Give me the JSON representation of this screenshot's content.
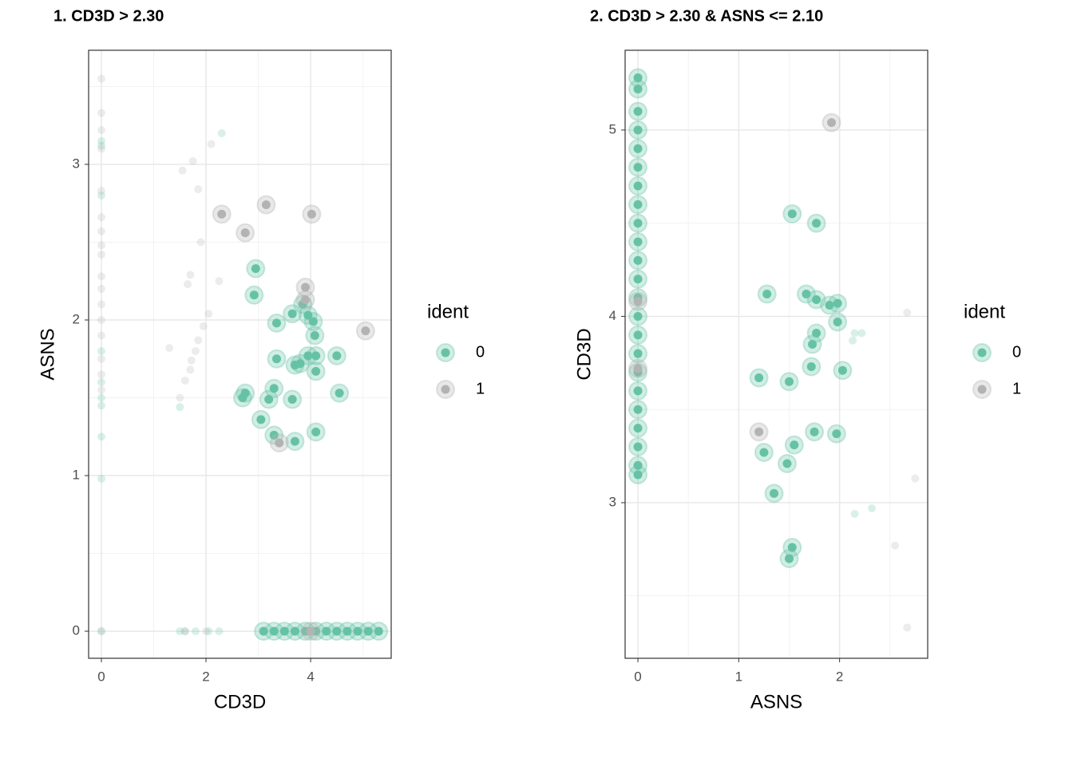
{
  "chart_data": [
    {
      "type": "scatter",
      "title": "1. CD3D > 2.30",
      "x_label": "CD3D",
      "y_label": "ASNS",
      "legend_title": "ident",
      "xlim": [
        -0.244,
        5.54
      ],
      "ylim": [
        -0.174,
        3.733
      ],
      "xticks": [
        0,
        2,
        4
      ],
      "yticks": [
        0,
        1,
        2,
        3
      ],
      "grid": true,
      "legend": "right",
      "series": [
        {
          "name": "0",
          "color": "#66c2a5",
          "x": [
            2.95,
            2.92,
            3.35,
            3.65,
            3.85,
            3.95,
            4.05,
            4.08,
            3.35,
            3.7,
            3.8,
            3.95,
            4.1,
            4.1,
            4.5,
            4.55,
            2.7,
            2.75,
            3.3,
            3.2,
            3.65,
            3.05,
            3.3,
            3.7,
            4.1,
            3.1,
            3.3,
            3.5,
            3.7,
            3.9,
            4.1,
            4.3,
            4.5,
            4.7,
            4.9,
            5.1,
            5.3,
            0,
            0,
            0,
            0,
            0,
            0,
            0,
            0,
            0,
            0,
            1.5,
            2.3,
            1.5,
            1.6,
            1.8,
            2.05,
            2.25
          ],
          "values": [
            2.33,
            2.16,
            1.98,
            2.04,
            2.1,
            2.03,
            1.99,
            1.9,
            1.75,
            1.71,
            1.72,
            1.77,
            1.77,
            1.67,
            1.77,
            1.53,
            1.5,
            1.53,
            1.56,
            1.49,
            1.49,
            1.36,
            1.26,
            1.22,
            1.28,
            0,
            0,
            0,
            0,
            0,
            0,
            0,
            0,
            0,
            0,
            0,
            0,
            0.98,
            1.25,
            1.45,
            1.5,
            1.6,
            1.8,
            3.12,
            3.15,
            2.8,
            0,
            1.44,
            3.2,
            0,
            0,
            0,
            0,
            0
          ],
          "sizes": [
            2,
            2,
            2,
            2,
            2,
            2,
            2,
            2,
            2,
            2,
            2,
            2,
            2,
            2,
            2,
            2,
            2,
            2,
            2,
            2,
            2,
            2,
            2,
            2,
            2,
            2,
            2,
            2,
            2,
            2,
            2,
            2,
            2,
            2,
            2,
            2,
            2,
            1,
            1,
            1,
            1,
            1,
            1,
            1,
            1,
            1,
            1,
            1,
            1,
            1,
            1,
            1,
            1,
            1
          ]
        },
        {
          "name": "1",
          "color": "#b3b3b3",
          "x": [
            2.3,
            3.15,
            4.02,
            2.75,
            3.9,
            3.9,
            5.05,
            3.4,
            4.0,
            0,
            0,
            0,
            0,
            0,
            0,
            0,
            0,
            0,
            0,
            0,
            0,
            0,
            0,
            0,
            0,
            0,
            0,
            1.55,
            1.75,
            2.1,
            1.85,
            1.9,
            1.7,
            1.65,
            2.25,
            2.05,
            1.95,
            1.3,
            1.85,
            1.8,
            1.72,
            1.7,
            1.6,
            1.5,
            1.6,
            2.0
          ],
          "values": [
            2.68,
            2.74,
            2.68,
            2.56,
            2.21,
            2.13,
            1.93,
            1.21,
            0,
            3.55,
            3.33,
            3.22,
            3.1,
            2.83,
            2.66,
            2.57,
            2.48,
            2.42,
            2.28,
            2.2,
            2.1,
            2.0,
            1.9,
            1.75,
            1.65,
            1.55,
            0,
            2.96,
            3.02,
            3.13,
            2.84,
            2.5,
            2.29,
            2.23,
            2.25,
            2.04,
            1.96,
            1.82,
            1.87,
            1.8,
            1.74,
            1.68,
            1.61,
            1.5,
            0,
            0
          ],
          "sizes": [
            2,
            2,
            2,
            2,
            2,
            2,
            2,
            2,
            2,
            1,
            1,
            1,
            1,
            1,
            1,
            1,
            1,
            1,
            1,
            1,
            1,
            1,
            1,
            1,
            1,
            1,
            1,
            1,
            1,
            1,
            1,
            1,
            1,
            1,
            1,
            1,
            1,
            1,
            1,
            1,
            1,
            1,
            1,
            1,
            1,
            1
          ]
        }
      ]
    },
    {
      "type": "scatter",
      "title": "2. CD3D > 2.30 & ASNS <= 2.10",
      "x_label": "ASNS",
      "y_label": "CD3D",
      "legend_title": "ident",
      "xlim": [
        -0.127,
        2.874
      ],
      "ylim": [
        2.165,
        5.428
      ],
      "xticks": [
        0,
        1,
        2
      ],
      "yticks": [
        3,
        4,
        5
      ],
      "grid": true,
      "legend": "right",
      "series": [
        {
          "name": "0",
          "color": "#66c2a5",
          "x": [
            0,
            0,
            0,
            0,
            0,
            0,
            0,
            0,
            0,
            0,
            0,
            0,
            0,
            0,
            0,
            0,
            0,
            0,
            0,
            0,
            0,
            0,
            0,
            1.53,
            1.77,
            1.28,
            1.67,
            1.77,
            1.9,
            1.98,
            1.98,
            1.77,
            1.73,
            1.2,
            1.5,
            1.72,
            2.03,
            1.75,
            1.97,
            1.55,
            1.25,
            1.48,
            1.35,
            1.53,
            1.5,
            2.13,
            2.15,
            2.22,
            2.15,
            2.32
          ],
          "values": [
            5.28,
            5.22,
            5.1,
            5.0,
            4.9,
            4.8,
            4.7,
            4.6,
            4.5,
            4.4,
            4.3,
            4.2,
            4.1,
            4.0,
            3.9,
            3.8,
            3.7,
            3.6,
            3.5,
            3.4,
            3.3,
            3.2,
            3.15,
            4.55,
            4.5,
            4.12,
            4.12,
            4.09,
            4.06,
            4.07,
            3.97,
            3.91,
            3.85,
            3.67,
            3.65,
            3.73,
            3.71,
            3.38,
            3.37,
            3.31,
            3.27,
            3.21,
            3.05,
            2.76,
            2.7,
            3.87,
            3.91,
            3.91,
            2.94,
            2.97
          ],
          "sizes": [
            2,
            2,
            2,
            2,
            2,
            2,
            2,
            2,
            2,
            2,
            2,
            2,
            2,
            2,
            2,
            2,
            2,
            2,
            2,
            2,
            2,
            2,
            2,
            2,
            2,
            2,
            2,
            2,
            2,
            2,
            2,
            2,
            2,
            2,
            2,
            2,
            2,
            2,
            2,
            2,
            2,
            2,
            2,
            2,
            2,
            1,
            1,
            1,
            1,
            1
          ]
        },
        {
          "name": "1",
          "color": "#b3b3b3",
          "x": [
            1.92,
            1.2,
            0,
            0,
            2.67,
            2.75,
            2.55,
            2.67
          ],
          "values": [
            5.04,
            3.38,
            4.08,
            3.72,
            4.02,
            3.13,
            2.77,
            2.33
          ],
          "sizes": [
            2,
            2,
            2,
            2,
            1,
            1,
            1,
            1
          ]
        }
      ]
    }
  ]
}
